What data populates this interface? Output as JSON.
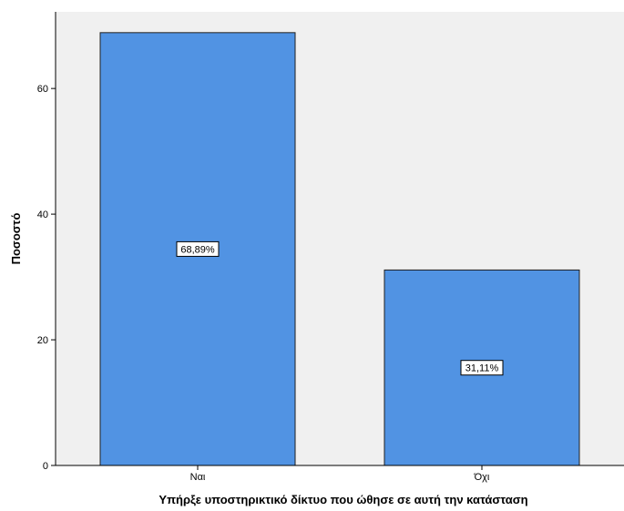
{
  "chart_data": {
    "type": "bar",
    "categories": [
      "Ναι",
      "Όχι"
    ],
    "values": [
      68.89,
      31.11
    ],
    "data_labels": [
      "68,89%",
      "31,11%"
    ],
    "xlabel": "Υπήρξε υποστηρικτικό δίκτυο που ώθησε σε αυτή την κατάσταση",
    "ylabel": "Ποσοστό",
    "ylim": [
      0,
      72.2
    ],
    "yticks": [
      0,
      20,
      40,
      60
    ],
    "ytick_labels": [
      "0",
      "20",
      "40",
      "60"
    ],
    "grid": false,
    "legend": "none",
    "colors": {
      "bar_fill": "#5193e3",
      "bar_stroke": "#1f1f1f",
      "plot_background": "#f0f0f0",
      "axis": "#000000"
    }
  }
}
